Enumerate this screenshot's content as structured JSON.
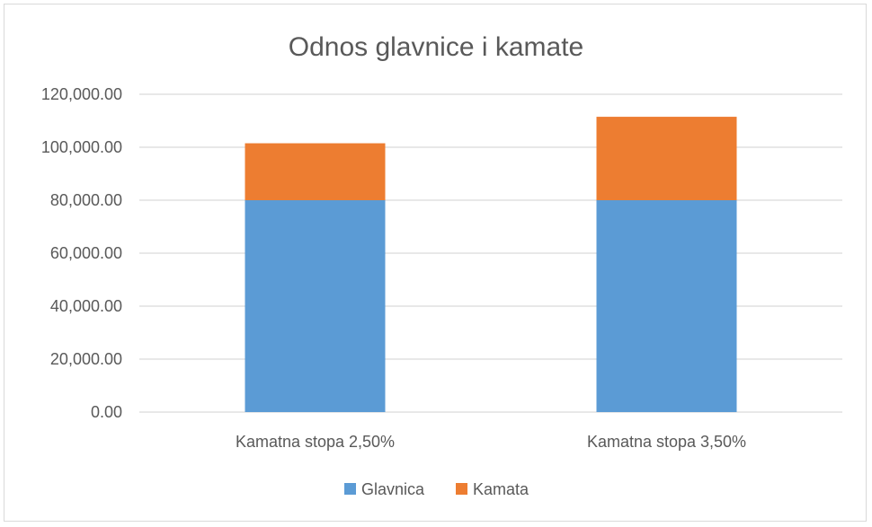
{
  "chart_data": {
    "type": "bar",
    "stacked": true,
    "title": "Odnos glavnice i kamate",
    "xlabel": "",
    "ylabel": "",
    "categories": [
      "Kamatna stopa 2,50%",
      "Kamatna stopa 3,50%"
    ],
    "series": [
      {
        "name": "Glavnica",
        "color": "#5b9bd5",
        "values": [
          80000,
          80000
        ]
      },
      {
        "name": "Kamata",
        "color": "#ed7d31",
        "values": [
          21500,
          31500
        ]
      }
    ],
    "ylim": [
      0,
      120000
    ],
    "yticks": [
      "0.00",
      "20,000.00",
      "40,000.00",
      "60,000.00",
      "80,000.00",
      "100,000.00",
      "120,000.00"
    ],
    "ytick_values": [
      0,
      20000,
      40000,
      60000,
      80000,
      100000,
      120000
    ],
    "grid": true,
    "legend_position": "bottom",
    "gridline_color": "#d9d9d9"
  }
}
